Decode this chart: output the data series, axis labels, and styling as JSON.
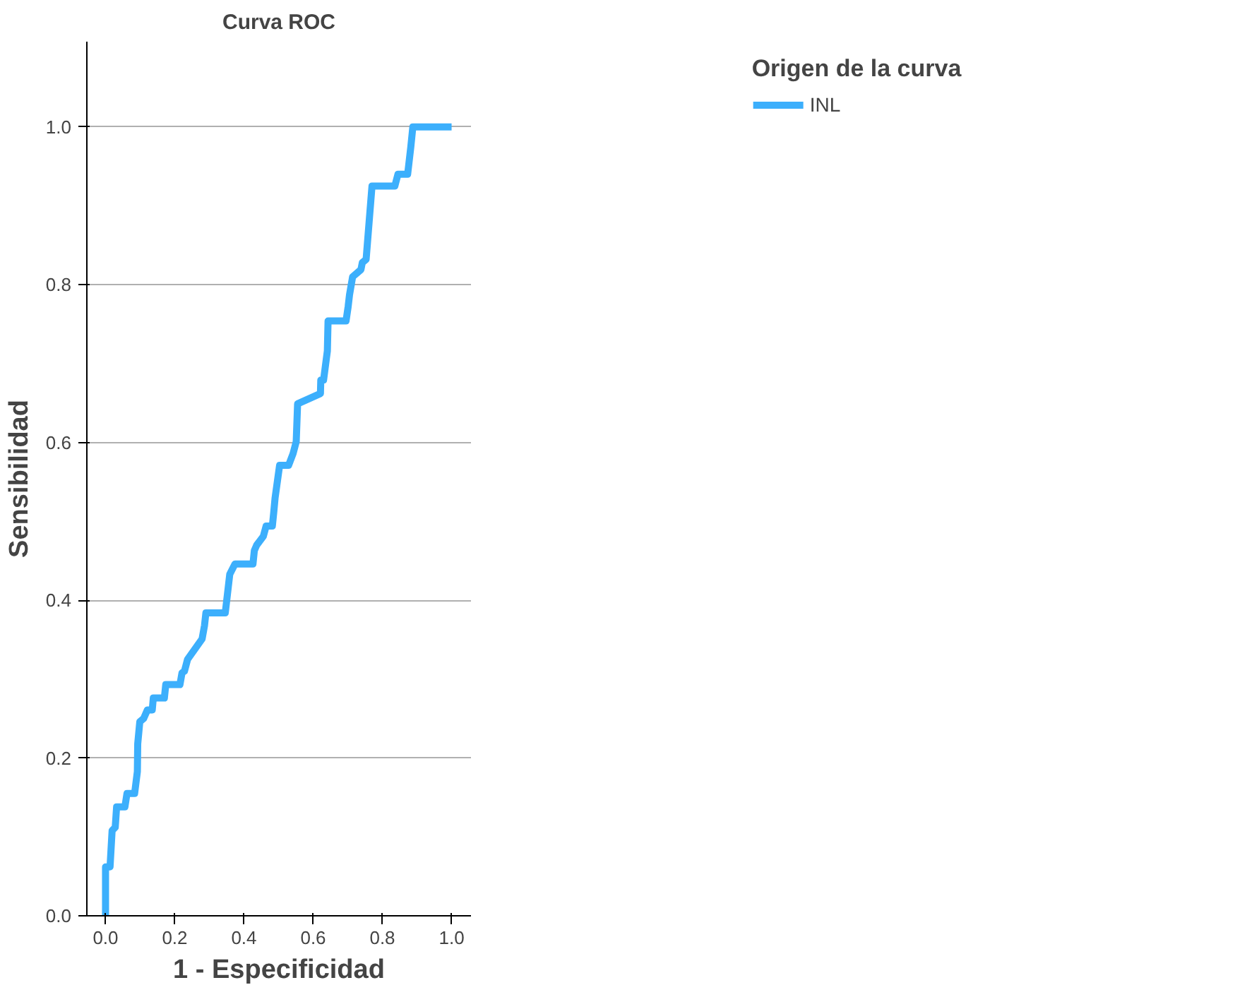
{
  "chart_data": {
    "type": "line",
    "title": "Curva ROC",
    "xlabel": "1 - Especificidad",
    "ylabel": "Sensibilidad",
    "legend_title": "Origen de la curva",
    "x": [
      0,
      0,
      0.013,
      0.019,
      0.028,
      0.032,
      0.056,
      0.062,
      0.084,
      0.092,
      0.093,
      0.099,
      0.11,
      0.121,
      0.135,
      0.138,
      0.17,
      0.174,
      0.215,
      0.221,
      0.228,
      0.237,
      0.279,
      0.286,
      0.29,
      0.346,
      0.355,
      0.359,
      0.374,
      0.426,
      0.43,
      0.437,
      0.456,
      0.464,
      0.482,
      0.486,
      0.49,
      0.503,
      0.529,
      0.542,
      0.551,
      0.555,
      0.621,
      0.622,
      0.63,
      0.641,
      0.643,
      0.695,
      0.701,
      0.705,
      0.714,
      0.738,
      0.742,
      0.753,
      0.77,
      0.836,
      0.845,
      0.873,
      0.882,
      0.888,
      1
    ],
    "series": [
      {
        "name": "INL",
        "color": "#3caffc",
        "values": [
          0,
          0.062,
          0.062,
          0.108,
          0.112,
          0.138,
          0.138,
          0.155,
          0.155,
          0.183,
          0.218,
          0.246,
          0.25,
          0.261,
          0.261,
          0.276,
          0.276,
          0.293,
          0.293,
          0.308,
          0.31,
          0.325,
          0.351,
          0.368,
          0.384,
          0.384,
          0.418,
          0.433,
          0.446,
          0.446,
          0.463,
          0.47,
          0.481,
          0.494,
          0.494,
          0.511,
          0.53,
          0.571,
          0.571,
          0.586,
          0.601,
          0.649,
          0.662,
          0.679,
          0.679,
          0.716,
          0.754,
          0.754,
          0.772,
          0.787,
          0.81,
          0.819,
          0.828,
          0.832,
          0.925,
          0.925,
          0.94,
          0.94,
          0.974,
          1,
          1
        ]
      }
    ],
    "xlim": [
      -0.054,
      1.056
    ],
    "ylim": [
      0,
      1.108
    ],
    "xticks": [
      {
        "value": 0,
        "label": "0.0"
      },
      0.2,
      0.4,
      0.6,
      0.8,
      {
        "value": 1,
        "label": "1.0"
      }
    ],
    "yticks": [
      {
        "value": 0,
        "label": "0.0"
      },
      0.2,
      0.4,
      0.6,
      0.8,
      {
        "value": 1,
        "label": "1.0"
      }
    ],
    "grid": "y",
    "legend": "top right",
    "line_style": "solid",
    "marker": "none"
  }
}
